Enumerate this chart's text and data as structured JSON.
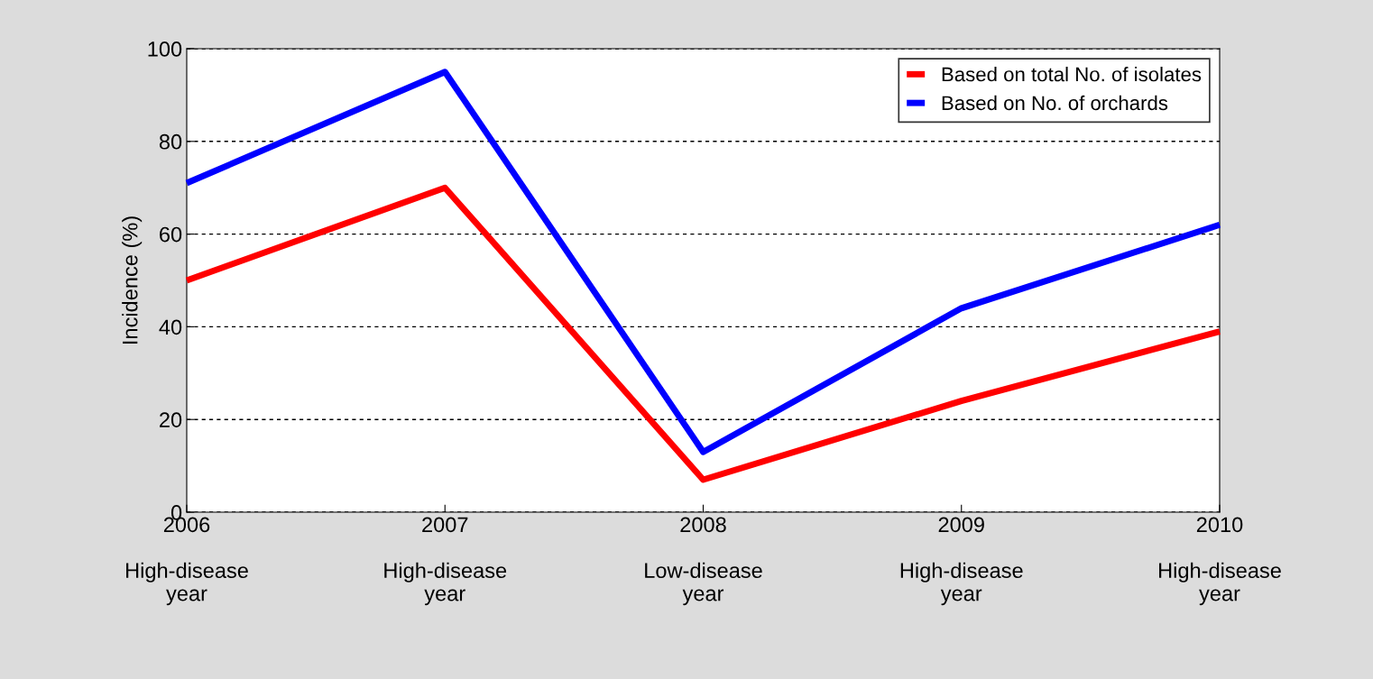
{
  "chart_data": {
    "type": "line",
    "ylabel": "Incidence (%)",
    "categories": [
      "2006\n\nHigh-disease\nyear",
      "2007\n\nHigh-disease\nyear",
      "2008\n\nLow-disease\nyear",
      "2009\n\nHigh-disease\nyear",
      "2010\n\nHigh-disease\nyear"
    ],
    "series": [
      {
        "name": "Based on total No. of isolates",
        "color": "#ff0000",
        "values": [
          50,
          70,
          7,
          24,
          39
        ]
      },
      {
        "name": "Based on No. of orchards",
        "color": "#0000ff",
        "values": [
          71,
          95,
          13,
          44,
          62
        ]
      }
    ],
    "ylim": [
      0,
      100
    ],
    "yticks": [
      0,
      20,
      40,
      60,
      80,
      100
    ],
    "grid": "y",
    "legend": "top right",
    "marker": "none",
    "line_style": "solid"
  }
}
